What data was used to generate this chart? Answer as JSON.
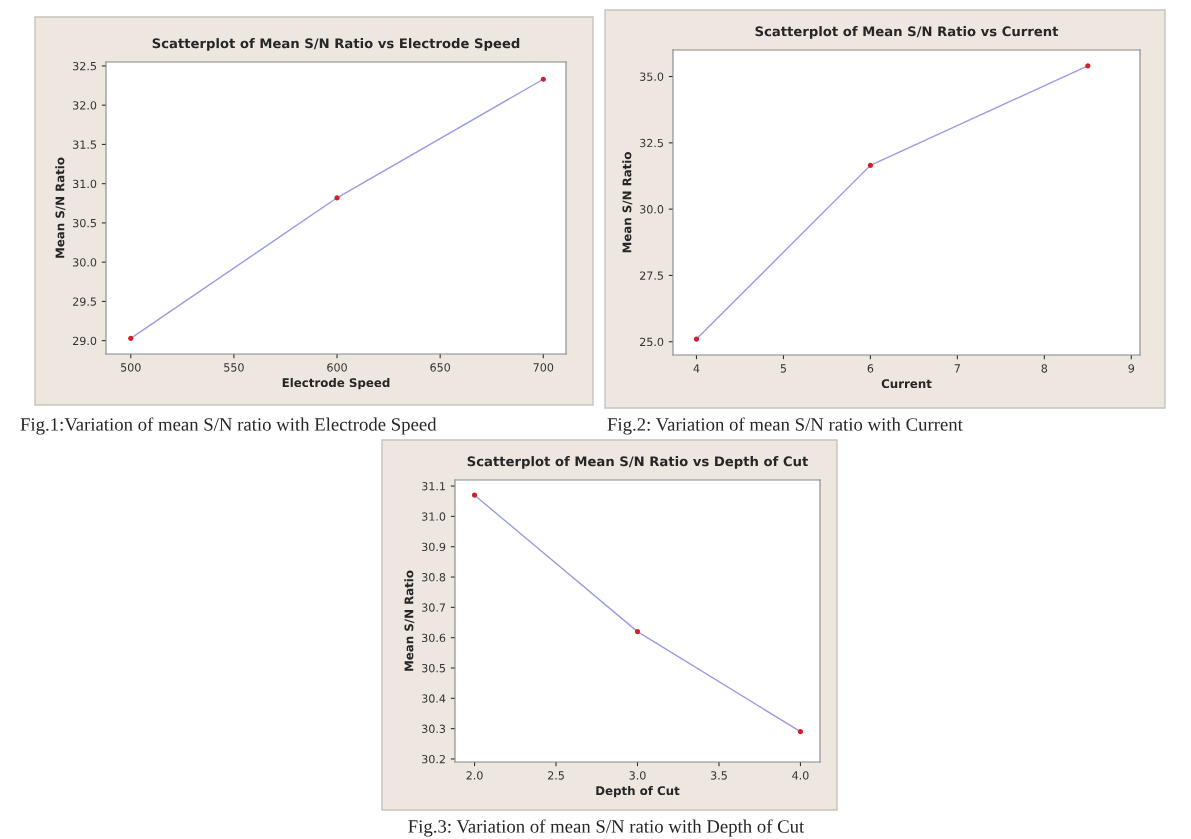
{
  "chart_data": [
    {
      "type": "line",
      "title": "Scatterplot of Mean S/N Ratio vs Electrode Speed",
      "xlabel": "Electrode Speed",
      "ylabel": "Mean S/N Ratio",
      "x": [
        500,
        600,
        700
      ],
      "series": [
        {
          "color": "#9a9ae6",
          "values": [
            29.03,
            30.82,
            32.33
          ],
          "marker": "none"
        },
        {
          "type": "scatter",
          "color": "#d0202a",
          "values": [
            29.03,
            30.82,
            32.33
          ],
          "marker": "circle"
        }
      ],
      "xlim": [
        488,
        711
      ],
      "xticks": [
        500,
        550,
        600,
        650,
        700
      ],
      "ylim": [
        28.83,
        32.55
      ],
      "yticks": [
        {
          "value": 29,
          "label": "29.0"
        },
        29.5,
        {
          "value": 30,
          "label": "30.0"
        },
        30.5,
        {
          "value": 31,
          "label": "31.0"
        },
        31.5,
        {
          "value": 32,
          "label": "32.0"
        },
        32.5
      ],
      "grid": false,
      "legend": false,
      "annotations": [
        "Fig.1:Variation of mean S/N ratio with Electrode Speed"
      ]
    },
    {
      "type": "line",
      "title": "Scatterplot of Mean S/N Ratio vs Current",
      "xlabel": "Current",
      "ylabel": "Mean S/N Ratio",
      "x": [
        4,
        6,
        8.5
      ],
      "series": [
        {
          "color": "#9a9ae6",
          "values": [
            25.1,
            31.65,
            35.4
          ],
          "marker": "none"
        },
        {
          "type": "scatter",
          "color": "#d0202a",
          "values": [
            25.1,
            31.65,
            35.4
          ],
          "marker": "circle"
        }
      ],
      "xlim": [
        3.73,
        9.1
      ],
      "xticks": [
        4,
        5,
        6,
        7,
        8,
        9
      ],
      "ylim": [
        24.5,
        36.0
      ],
      "yticks": [
        {
          "value": 25,
          "label": "25.0"
        },
        27.5,
        {
          "value": 30,
          "label": "30.0"
        },
        32.5,
        {
          "value": 35,
          "label": "35.0"
        }
      ],
      "grid": false,
      "legend": false,
      "annotations": [
        "Fig.2: Variation of mean S/N ratio with Current"
      ]
    },
    {
      "type": "line",
      "title": "Scatterplot of Mean S/N Ratio vs Depth of Cut",
      "xlabel": "Depth of Cut",
      "ylabel": "Mean S/N Ratio",
      "x": [
        2.0,
        3.0,
        4.0
      ],
      "series": [
        {
          "color": "#9a9ae6",
          "values": [
            31.07,
            30.62,
            30.29
          ],
          "marker": "none"
        },
        {
          "type": "scatter",
          "color": "#d0202a",
          "values": [
            31.07,
            30.62,
            30.29
          ],
          "marker": "circle"
        }
      ],
      "xlim": [
        1.88,
        4.12
      ],
      "xticks": [
        {
          "value": 2,
          "label": "2.0"
        },
        2.5,
        {
          "value": 3,
          "label": "3.0"
        },
        3.5,
        {
          "value": 4,
          "label": "4.0"
        }
      ],
      "ylim": [
        30.19,
        31.12
      ],
      "yticks": [
        30.2,
        30.3,
        30.4,
        30.5,
        30.6,
        30.7,
        30.8,
        30.9,
        {
          "value": 31,
          "label": "31.0"
        },
        31.1
      ],
      "grid": false,
      "legend": false,
      "annotations": [
        "Fig.3: Variation of mean S/N ratio with Depth of Cut"
      ]
    }
  ]
}
